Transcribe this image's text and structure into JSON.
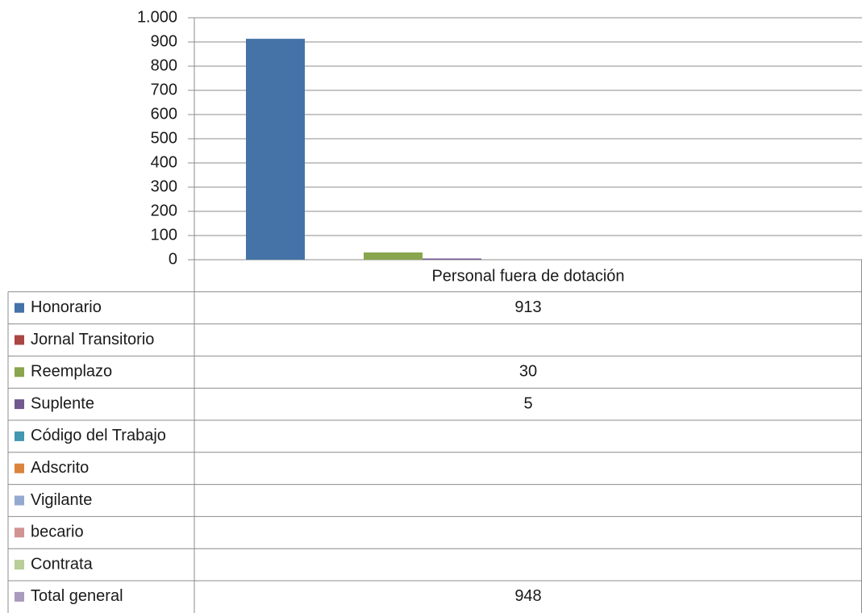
{
  "chart_data": {
    "type": "bar",
    "categories": [
      "Personal fuera de dotación"
    ],
    "series": [
      {
        "name": "Honorario",
        "color": "#4572a7",
        "values": [
          913
        ]
      },
      {
        "name": "Jornal Transitorio",
        "color": "#aa4643",
        "values": [
          null
        ]
      },
      {
        "name": "Reemplazo",
        "color": "#89a54e",
        "values": [
          30
        ]
      },
      {
        "name": "Suplente",
        "color": "#71588f",
        "values": [
          5
        ]
      },
      {
        "name": "Código del Trabajo",
        "color": "#4198af",
        "values": [
          null
        ]
      },
      {
        "name": "Adscrito",
        "color": "#db843d",
        "values": [
          null
        ]
      },
      {
        "name": "Vigilante",
        "color": "#93a9cf",
        "values": [
          null
        ]
      },
      {
        "name": "becario",
        "color": "#d19392",
        "values": [
          null
        ]
      },
      {
        "name": "Contrata",
        "color": "#b9cd96",
        "values": [
          null
        ]
      }
    ],
    "total": {
      "name": "Total general",
      "color": "#a99bbd",
      "values": [
        948
      ]
    },
    "ylim": [
      0,
      1000
    ],
    "yticks": [
      0,
      100,
      200,
      300,
      400,
      500,
      600,
      700,
      800,
      900,
      {
        "value": 1000,
        "label": "1.000"
      }
    ],
    "grid": true
  }
}
